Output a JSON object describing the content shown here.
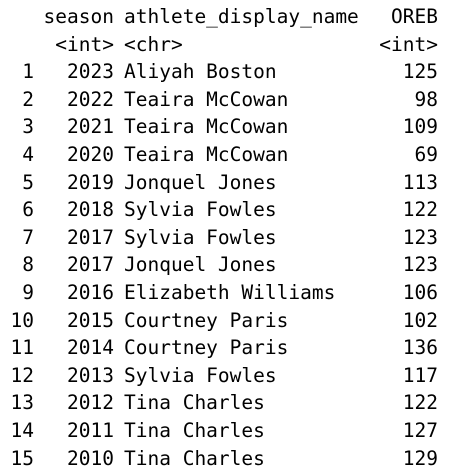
{
  "table": {
    "columns": [
      {
        "name": "season",
        "type": "<int>"
      },
      {
        "name": "athlete_display_name",
        "type": "<chr>"
      },
      {
        "name": "OREB",
        "type": "<int>"
      }
    ],
    "rows": [
      {
        "idx": "1",
        "season": "2023",
        "athlete": "Aliyah Boston",
        "oreb": "125"
      },
      {
        "idx": "2",
        "season": "2022",
        "athlete": "Teaira McCowan",
        "oreb": "98"
      },
      {
        "idx": "3",
        "season": "2021",
        "athlete": "Teaira McCowan",
        "oreb": "109"
      },
      {
        "idx": "4",
        "season": "2020",
        "athlete": "Teaira McCowan",
        "oreb": "69"
      },
      {
        "idx": "5",
        "season": "2019",
        "athlete": "Jonquel Jones",
        "oreb": "113"
      },
      {
        "idx": "6",
        "season": "2018",
        "athlete": "Sylvia Fowles",
        "oreb": "122"
      },
      {
        "idx": "7",
        "season": "2017",
        "athlete": "Sylvia Fowles",
        "oreb": "123"
      },
      {
        "idx": "8",
        "season": "2017",
        "athlete": "Jonquel Jones",
        "oreb": "123"
      },
      {
        "idx": "9",
        "season": "2016",
        "athlete": "Elizabeth Williams",
        "oreb": "106"
      },
      {
        "idx": "10",
        "season": "2015",
        "athlete": "Courtney Paris",
        "oreb": "102"
      },
      {
        "idx": "11",
        "season": "2014",
        "athlete": "Courtney Paris",
        "oreb": "136"
      },
      {
        "idx": "12",
        "season": "2013",
        "athlete": "Sylvia Fowles",
        "oreb": "117"
      },
      {
        "idx": "13",
        "season": "2012",
        "athlete": "Tina Charles",
        "oreb": "122"
      },
      {
        "idx": "14",
        "season": "2011",
        "athlete": "Tina Charles",
        "oreb": "127"
      },
      {
        "idx": "15",
        "season": "2010",
        "athlete": "Tina Charles",
        "oreb": "129"
      }
    ]
  }
}
